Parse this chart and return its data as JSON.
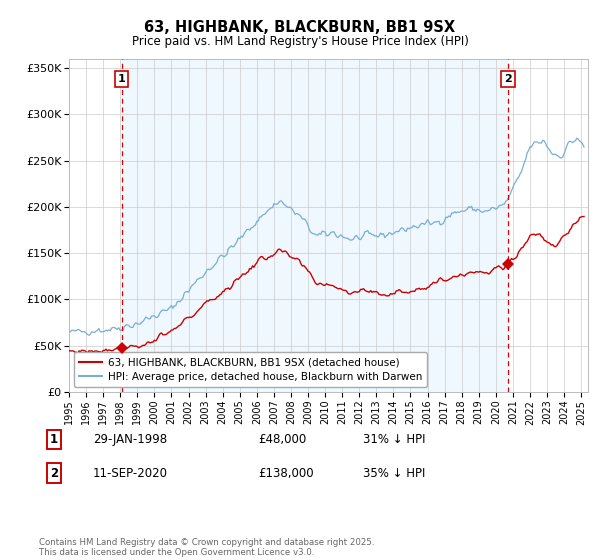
{
  "title": "63, HIGHBANK, BLACKBURN, BB1 9SX",
  "subtitle": "Price paid vs. HM Land Registry's House Price Index (HPI)",
  "sale1": {
    "date_num": 1998.08,
    "price": 48000,
    "label": "1",
    "date_str": "29-JAN-1998",
    "pct": "31% ↓ HPI"
  },
  "sale2": {
    "date_num": 2020.71,
    "price": 138000,
    "label": "2",
    "date_str": "11-SEP-2020",
    "pct": "35% ↓ HPI"
  },
  "red_color": "#cc0000",
  "blue_color": "#7aadd4",
  "dashed_red": "#dd0000",
  "shade_color": "#ddeeff",
  "legend_red_label": "63, HIGHBANK, BLACKBURN, BB1 9SX (detached house)",
  "legend_blue_label": "HPI: Average price, detached house, Blackburn with Darwen",
  "footnote": "Contains HM Land Registry data © Crown copyright and database right 2025.\nThis data is licensed under the Open Government Licence v3.0.",
  "ylim": [
    0,
    360000
  ],
  "yticks": [
    0,
    50000,
    100000,
    150000,
    200000,
    250000,
    300000,
    350000
  ],
  "ytick_labels": [
    "£0",
    "£50K",
    "£100K",
    "£150K",
    "£200K",
    "£250K",
    "£300K",
    "£350K"
  ],
  "figsize": [
    6.0,
    5.6
  ],
  "dpi": 100
}
